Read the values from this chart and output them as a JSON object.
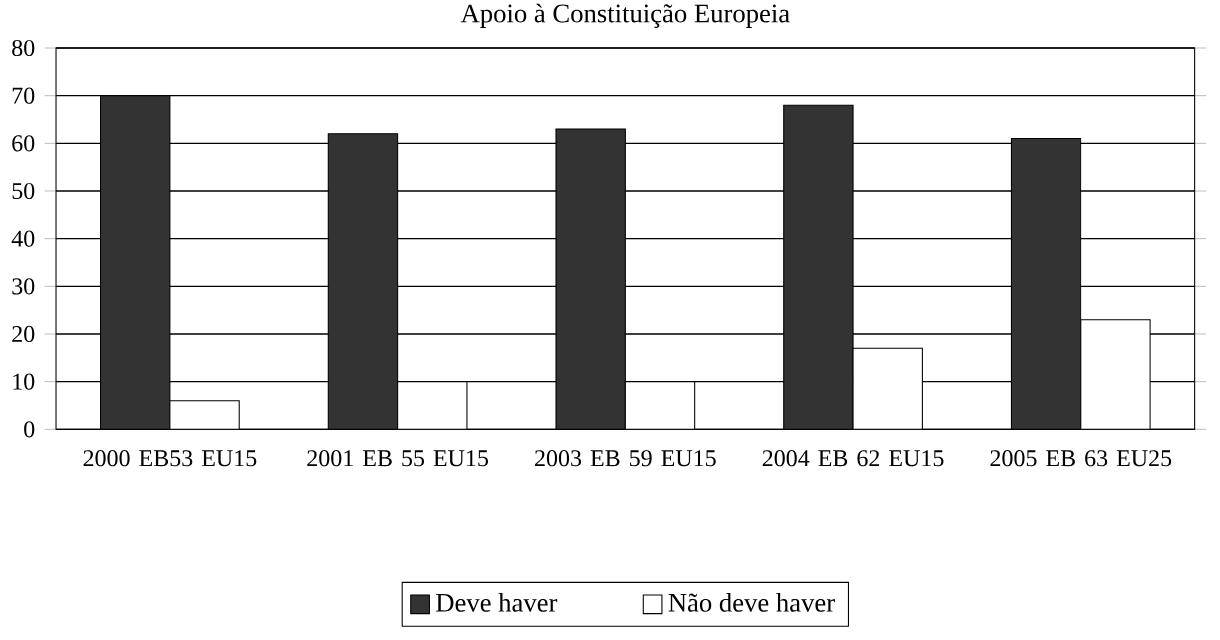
{
  "chart_data": {
    "type": "bar",
    "title": "Apoio à Constituição Europeia",
    "categories": [
      "2000 EB53 EU15",
      "2001 EB 55 EU15",
      "2003 EB 59 EU15",
      "2004 EB 62 EU15",
      "2005 EB 63 EU25"
    ],
    "series": [
      {
        "name": "Deve haver",
        "color": "#333333",
        "values": [
          70,
          62,
          63,
          68,
          61
        ]
      },
      {
        "name": "Não deve haver",
        "color": "#ffffff",
        "values": [
          6,
          10,
          10,
          17,
          23
        ]
      }
    ],
    "ylim": [
      0,
      80
    ],
    "yticks": [
      0,
      10,
      20,
      30,
      40,
      50,
      60,
      70,
      80
    ],
    "grid": "y",
    "legend": "bottom"
  }
}
